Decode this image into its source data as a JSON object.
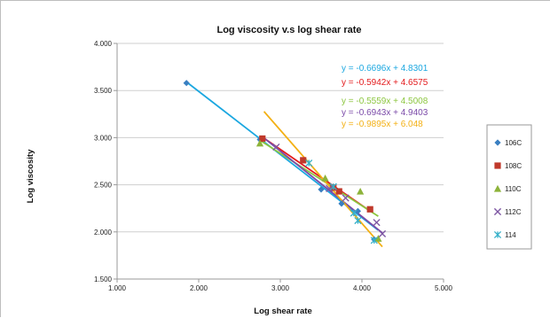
{
  "chart_data": {
    "type": "scatter",
    "title": "Log viscosity v.s log shear rate",
    "xlabel": "Log shear rate",
    "ylabel": "Log viscosity",
    "xlim": [
      1.0,
      5.0
    ],
    "ylim": [
      1.5,
      4.0
    ],
    "xticks": [
      "1.000",
      "2.000",
      "3.000",
      "4.000",
      "5.000"
    ],
    "yticks": [
      "1.500",
      "2.000",
      "2.500",
      "3.000",
      "3.500",
      "4.000"
    ],
    "grid": "horizontal",
    "legend_position": "right",
    "series": [
      {
        "name": "106C",
        "color": "#3a7fc1",
        "marker": "diamond",
        "x": [
          1.85,
          2.75,
          3.5,
          3.75,
          3.95,
          4.15
        ],
        "y": [
          3.58,
          2.98,
          2.45,
          2.3,
          2.22,
          1.92
        ],
        "trend": {
          "slope": -0.6696,
          "intercept": 4.8301,
          "color": "#1ba7e0",
          "equation": "y = -0.6696x + 4.8301",
          "x_range": [
            1.85,
            4.2
          ]
        }
      },
      {
        "name": "108C",
        "color": "#c0392b",
        "marker": "square",
        "x": [
          2.78,
          3.28,
          3.65,
          3.72,
          4.1
        ],
        "y": [
          2.99,
          2.76,
          2.47,
          2.43,
          2.24
        ],
        "trend": {
          "slope": -0.5942,
          "intercept": 4.6575,
          "color": "#e31a1c",
          "equation": "y = -0.5942x + 4.6575",
          "x_range": [
            2.78,
            4.1
          ]
        }
      },
      {
        "name": "110C",
        "color": "#8db33a",
        "marker": "triangle",
        "x": [
          2.75,
          3.55,
          3.98,
          4.2
        ],
        "y": [
          2.94,
          2.57,
          2.43,
          1.93
        ],
        "trend": {
          "slope": -0.5559,
          "intercept": 4.5008,
          "color": "#8cc63f",
          "equation": "y = -0.5559x + 4.5008",
          "x_range": [
            2.75,
            4.2
          ]
        }
      },
      {
        "name": "112C",
        "color": "#7e57a3",
        "marker": "x",
        "x": [
          2.95,
          3.6,
          3.8,
          4.18,
          4.25
        ],
        "y": [
          2.9,
          2.46,
          2.36,
          2.1,
          1.98
        ],
        "trend": {
          "slope": -0.6943,
          "intercept": 4.9403,
          "color": "#7b4aa8",
          "equation": "y = -0.6943x + 4.9403",
          "x_range": [
            2.8,
            4.25
          ]
        }
      },
      {
        "name": "114",
        "color": "#35b0c9",
        "marker": "star",
        "x": [
          3.35,
          3.65,
          3.9,
          3.95,
          4.15
        ],
        "y": [
          2.73,
          2.48,
          2.2,
          2.12,
          1.91
        ],
        "trend": {
          "slope": -0.9895,
          "intercept": 6.048,
          "color": "#f3b014",
          "equation": "y = -0.9895x + 6.048",
          "x_range": [
            2.8,
            4.25
          ]
        }
      }
    ]
  }
}
